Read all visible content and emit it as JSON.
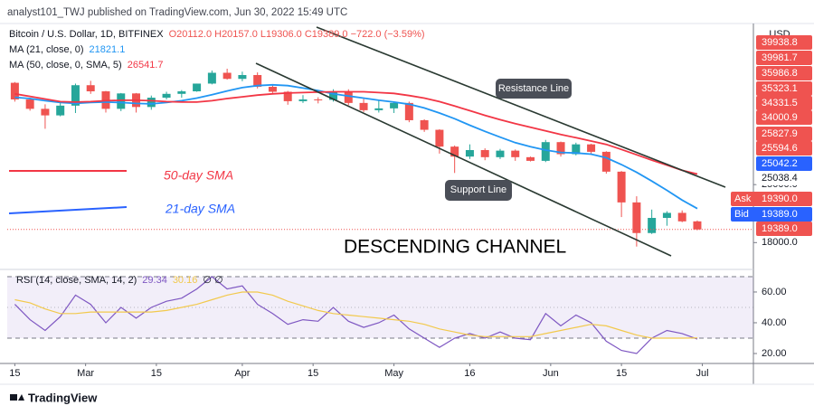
{
  "header": {
    "published": "analyst101_TWJ published on TradingView.com, Jun 30, 2022 15:49 UTC",
    "currency": "USD"
  },
  "annotations": {
    "resistance": "Resistance Line",
    "support": "Support Line",
    "channel": "DESCENDING CHANNEL",
    "sma50": "50-day SMA",
    "sma21": "21-day SMA"
  },
  "footer": {
    "brand": "TradingView"
  },
  "chart_data": [
    {
      "type": "candlestick",
      "title": "Bitcoin / U.S. Dollar, 1D, BITFINEX",
      "ohlc_text": "O20112.0 H20157.0 L19306.0 C19389.0 −722.0 (−3.59%)",
      "up_color": "#26a69a",
      "down_color": "#ef5350",
      "open": [
        44500,
        40500,
        38400,
        37000,
        39100,
        43900,
        42400,
        38400,
        41900,
        38800,
        40900,
        41800,
        42400,
        44300,
        47100,
        45500,
        46500,
        43500,
        42300,
        40100,
        40500,
        40400,
        42200,
        39700,
        38100,
        38500,
        39700,
        36000,
        34100,
        31000,
        29300,
        30400,
        29200,
        30300,
        29200,
        28600,
        31800,
        29700,
        31400,
        30100,
        26900,
        22600,
        19000,
        20700,
        21300,
        20300
      ],
      "high": [
        44700,
        40900,
        39400,
        39800,
        44300,
        45000,
        42500,
        42000,
        42000,
        41400,
        42300,
        42700,
        44300,
        47700,
        48200,
        47400,
        47200,
        43900,
        42500,
        41500,
        41000,
        42900,
        42900,
        40600,
        40400,
        39900,
        40000,
        36200,
        34200,
        31200,
        31400,
        30700,
        30600,
        30500,
        29300,
        32200,
        31900,
        31700,
        31500,
        30200,
        27000,
        23400,
        21700,
        21500,
        21600,
        20400
      ],
      "low": [
        40000,
        38000,
        34300,
        36800,
        37500,
        41800,
        37600,
        37900,
        37600,
        38200,
        40500,
        40900,
        42300,
        44100,
        45300,
        44900,
        43100,
        42000,
        39300,
        39700,
        39600,
        40000,
        39200,
        37700,
        37600,
        37500,
        35600,
        33700,
        29800,
        26700,
        28900,
        28700,
        28900,
        28600,
        28500,
        28400,
        29300,
        29500,
        29600,
        26600,
        20800,
        17600,
        18900,
        19800,
        20200,
        19300
      ],
      "close": [
        40500,
        38400,
        37000,
        39100,
        43900,
        42400,
        38400,
        41900,
        38800,
        40900,
        41800,
        42400,
        44300,
        47100,
        45500,
        46500,
        43500,
        42300,
        40100,
        40500,
        40400,
        42200,
        39700,
        38100,
        38500,
        39700,
        36000,
        34100,
        31000,
        29300,
        30400,
        29200,
        30300,
        29200,
        28600,
        31800,
        29700,
        31400,
        30100,
        26900,
        22600,
        19000,
        20700,
        21300,
        20300,
        19389
      ],
      "series": [
        {
          "name": "MA (21, close, 0)",
          "value_label": "21821.1",
          "color": "#2196f3",
          "values": [
            41000,
            40700,
            40200,
            39800,
            39600,
            39800,
            39900,
            39800,
            39600,
            39500,
            39800,
            40200,
            40800,
            41600,
            42500,
            43300,
            43800,
            44000,
            43800,
            43200,
            42600,
            41800,
            41300,
            40800,
            40300,
            39900,
            39400,
            38600,
            37500,
            36300,
            35000,
            33800,
            32700,
            31700,
            31000,
            30400,
            30000,
            29900,
            29700,
            29100,
            28000,
            26800,
            25500,
            24200,
            22900,
            21821.1
          ]
        },
        {
          "name": "MA (50, close, 0, SMA, 5)",
          "value_label": "26541.7",
          "color": "#f23645",
          "values": [
            41800,
            41200,
            40600,
            40000,
            39900,
            40000,
            40200,
            40300,
            40300,
            40200,
            40000,
            39900,
            39900,
            40200,
            40700,
            41100,
            41500,
            41800,
            42000,
            42100,
            42200,
            42300,
            42300,
            42300,
            42100,
            41900,
            41400,
            40800,
            40000,
            39000,
            38000,
            37000,
            36100,
            35300,
            34600,
            33900,
            33200,
            32600,
            32000,
            31400,
            30500,
            29600,
            28700,
            27900,
            27100,
            26541.7
          ]
        }
      ],
      "log_scale": true,
      "ylim": [
        15700,
        61000
      ],
      "yticks": [
        {
          "value": 18000,
          "label": "18000.0"
        },
        {
          "value": 25000,
          "label": "25000.0"
        }
      ],
      "xlim": [
        -0.5,
        48.7
      ],
      "xticks": [
        {
          "value": 0,
          "label": "15"
        },
        {
          "value": 4.667,
          "label": "Mar"
        },
        {
          "value": 9.333,
          "label": "15"
        },
        {
          "value": 15,
          "label": "Apr"
        },
        {
          "value": 19.667,
          "label": "15"
        },
        {
          "value": 25,
          "label": "May"
        },
        {
          "value": 30,
          "label": "16"
        },
        {
          "value": 35.333,
          "label": "Jun"
        },
        {
          "value": 40,
          "label": "15"
        },
        {
          "value": 45.333,
          "label": "Jul"
        }
      ],
      "price_tags": [
        {
          "text": "39938.8",
          "color": "#ef5350",
          "text_color": "#ffffff"
        },
        {
          "text": "39981.7",
          "color": "#ef5350",
          "text_color": "#ffffff"
        },
        {
          "text": "35986.8",
          "color": "#ef5350",
          "text_color": "#ffffff"
        },
        {
          "text": "35323.1",
          "color": "#ef5350",
          "text_color": "#ffffff"
        },
        {
          "text": "34331.5",
          "color": "#ef5350",
          "text_color": "#ffffff"
        },
        {
          "text": "34000.9",
          "color": "#ef5350",
          "text_color": "#ffffff"
        },
        {
          "text": "25827.9",
          "color": "#ef5350",
          "text_color": "#ffffff"
        },
        {
          "text": "25594.6",
          "color": "#ef5350",
          "text_color": "#ffffff"
        },
        {
          "text": "25042.2",
          "color": "#2962ff",
          "text_color": "#ffffff"
        },
        {
          "text": "25038.4",
          "color": "#ffffff",
          "text_color": "#131722"
        },
        {
          "prefix": "Ask",
          "text": "19390.0",
          "color": "#ef5350",
          "text_color": "#ffffff"
        },
        {
          "prefix": "Bid",
          "text": "19389.0",
          "color": "#2962ff",
          "text_color": "#ffffff"
        },
        {
          "text": "19389.0",
          "color": "#ef5350",
          "text_color": "#ffffff"
        }
      ]
    },
    {
      "type": "line",
      "title": "RSI (14, close, SMA, 14, 2)",
      "status": "∅ ∅",
      "series": [
        {
          "value_label": "29.34",
          "color": "#7e57c2",
          "values": [
            52,
            42,
            35,
            44,
            58,
            52,
            40,
            50,
            43,
            50,
            54,
            56,
            62,
            70,
            62,
            64,
            52,
            46,
            39,
            42,
            41,
            50,
            41,
            37,
            40,
            45,
            36,
            30,
            24,
            30,
            33,
            30,
            34,
            30,
            29,
            46,
            38,
            45,
            40,
            28,
            22,
            20,
            30,
            35,
            33,
            29.34
          ]
        },
        {
          "value_label": "30.16",
          "color": "#f2c94c",
          "values": [
            55,
            53,
            49,
            46,
            46,
            47,
            47,
            47,
            47,
            47,
            48,
            50,
            52,
            55,
            58,
            60,
            60,
            58,
            54,
            51,
            48,
            46,
            45,
            44,
            43,
            42,
            41,
            39,
            36,
            34,
            32,
            31,
            31,
            31,
            31,
            33,
            35,
            37,
            39,
            38,
            35,
            32,
            30,
            30,
            30,
            30.16
          ]
        }
      ],
      "band": [
        30,
        70
      ],
      "midline": 50,
      "band_color": "#7e57c2",
      "ylim": [
        14.7,
        73.5
      ],
      "yticks": [
        {
          "value": 20,
          "label": "20.00"
        },
        {
          "value": 40,
          "label": "40.00"
        },
        {
          "value": 60,
          "label": "60.00"
        }
      ]
    }
  ]
}
